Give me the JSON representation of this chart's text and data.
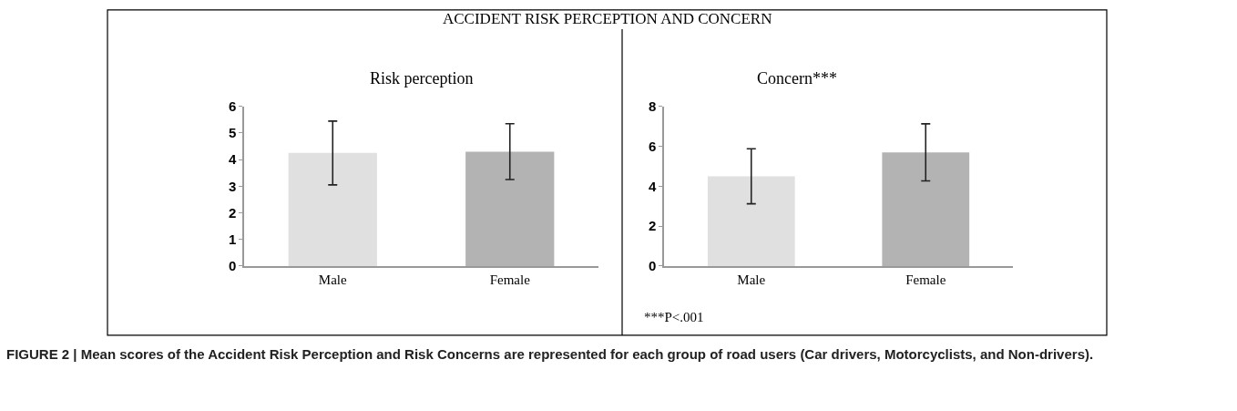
{
  "chart_data": [
    {
      "type": "bar",
      "title": "Risk perception",
      "categories": [
        "Male",
        "Female"
      ],
      "values": [
        4.25,
        4.3
      ],
      "errors": [
        1.2,
        1.05
      ],
      "colors": [
        "#e0e0e0",
        "#b3b3b3"
      ],
      "ylim": [
        0,
        6
      ],
      "yticks": [
        0,
        1,
        2,
        3,
        4,
        5,
        6
      ],
      "annotations": [
        "ACCIDENT RISK PERCEPTION AND CONCERN",
        "FIGURE 2 | Mean scores of the Accident Risk Perception and Risk Concerns are represented for each group of road users (Car drivers, Motorcyclists, and Non-drivers)."
      ]
    },
    {
      "type": "bar",
      "title": "Concern***",
      "categories": [
        "Male",
        "Female"
      ],
      "values": [
        4.5,
        5.7
      ],
      "errors": [
        1.38,
        1.43
      ],
      "colors": [
        "#e0e0e0",
        "#b3b3b3"
      ],
      "ylim": [
        0,
        8
      ],
      "yticks": [
        0,
        2,
        4,
        6,
        8
      ],
      "annotations": [
        "***P<.001"
      ]
    }
  ]
}
